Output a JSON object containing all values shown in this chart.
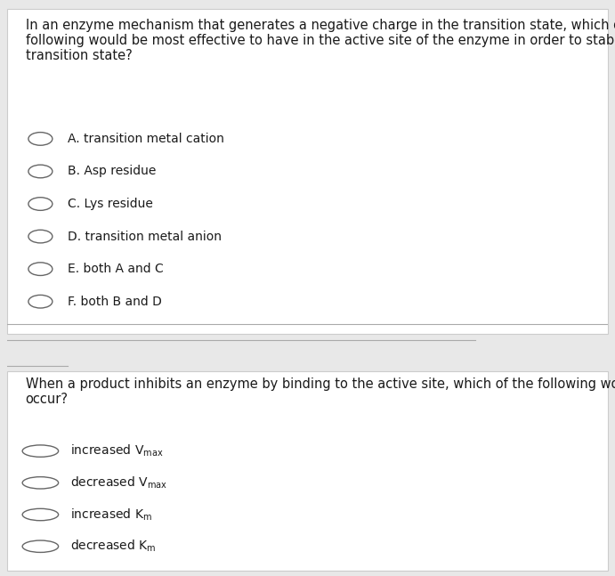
{
  "bg_color": "#e8e8e8",
  "panel1_bg": "#ffffff",
  "panel2_bg": "#ffffff",
  "q1_text": "In an enzyme mechanism that generates a negative charge in the transition state, which of the\nfollowing would be most effective to have in the active site of the enzyme in order to stabilize the\ntransition state?",
  "q1_options": [
    "A. transition metal cation",
    "B. Asp residue",
    "C. Lys residue",
    "D. transition metal anion",
    "E. both A and C",
    "F. both B and D"
  ],
  "q2_text": "When a product inhibits an enzyme by binding to the active site, which of the following would\noccur?",
  "q2_options_latex": [
    "increased V$_{\\mathrm{max}}$",
    "decreased V$_{\\mathrm{max}}$",
    "increased K$_{\\mathrm{m}}$",
    "decreased K$_{\\mathrm{m}}$"
  ],
  "text_color": "#1a1a1a",
  "circle_color": "#666666",
  "line_color": "#aaaaaa",
  "font_size_q": 10.5,
  "font_size_opt": 10.0
}
